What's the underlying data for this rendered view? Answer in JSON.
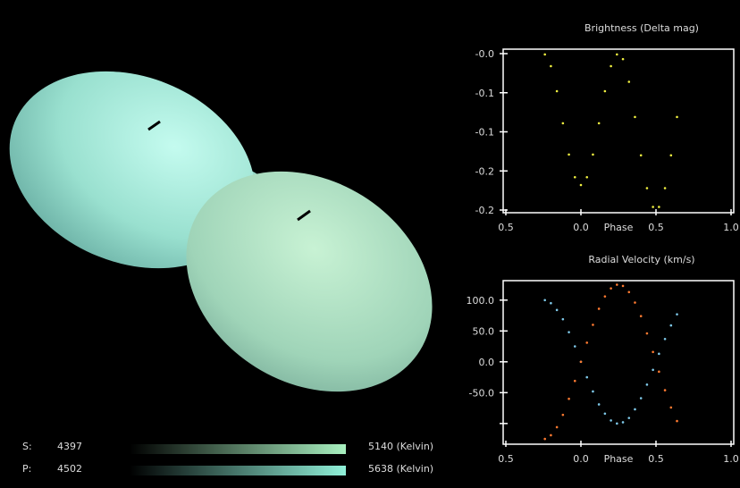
{
  "colors": {
    "background": "#000000",
    "secondary_star": "#a6ecd8",
    "primary_star": "#b4e4c4",
    "brightness_points": "#f0f040",
    "rv_primary": "#7ec8e8",
    "rv_secondary": "#ff7a30",
    "axes": "#ffffff"
  },
  "temperature": {
    "rows": [
      {
        "label": "S:",
        "min": "4397",
        "max": "5140 (Kelvin)",
        "color": "#a8f0c0"
      },
      {
        "label": "P:",
        "min": "4502",
        "max": "5638 (Kelvin)",
        "color": "#90f0d8"
      }
    ]
  },
  "chart_data": [
    {
      "type": "scatter",
      "title": "Brightness (Delta mag)",
      "xlabel": "Phase",
      "x_ticks": [
        {
          "v": -0.5,
          "label": "0.5"
        },
        {
          "v": 0.0,
          "label": "0.0"
        },
        {
          "v": 0.5,
          "label": "0.5"
        },
        {
          "v": 1.0,
          "label": "1.0"
        }
      ],
      "y_ticks": [
        {
          "v": 0.0,
          "label": "-0.0"
        },
        {
          "v": -0.05,
          "label": "-0.1"
        },
        {
          "v": -0.1,
          "label": "-0.1"
        },
        {
          "v": -0.15,
          "label": "-0.2"
        },
        {
          "v": -0.2,
          "label": "-0.2"
        }
      ],
      "xlim": [
        -0.5,
        1.0
      ],
      "ylim": [
        -0.2,
        0.0
      ],
      "grid": false,
      "series": [
        {
          "color": "#f0f040",
          "x": [
            -0.24,
            -0.2,
            -0.16,
            -0.12,
            -0.08,
            -0.04,
            0.0,
            0.04,
            0.08,
            0.12,
            0.16,
            0.2,
            0.24,
            0.28,
            0.32,
            0.36,
            0.4,
            0.44,
            0.48,
            0.52,
            0.56,
            0.6,
            0.64
          ],
          "y": [
            -0.001,
            -0.016,
            -0.048,
            -0.089,
            -0.129,
            -0.158,
            -0.168,
            -0.158,
            -0.129,
            -0.089,
            -0.048,
            -0.016,
            -0.001,
            -0.007,
            -0.036,
            -0.081,
            -0.13,
            -0.172,
            -0.196,
            -0.196,
            -0.172,
            -0.13,
            -0.081
          ]
        }
      ]
    },
    {
      "type": "scatter",
      "title": "Radial Velocity (km/s)",
      "xlabel": "Phase",
      "x_ticks": [
        {
          "v": -0.5,
          "label": "0.5"
        },
        {
          "v": 0.0,
          "label": "0.0"
        },
        {
          "v": 0.5,
          "label": "0.5"
        },
        {
          "v": 1.0,
          "label": "1.0"
        }
      ],
      "y_ticks": [
        {
          "v": 100,
          "label": "100.0"
        },
        {
          "v": 50,
          "label": "50.0"
        },
        {
          "v": 0,
          "label": "0.0"
        },
        {
          "v": -50,
          "label": "-50.0"
        },
        {
          "v": -100,
          "label": ""
        }
      ],
      "xlim": [
        -0.5,
        1.0
      ],
      "ylim": [
        -135,
        133
      ],
      "grid": false,
      "series": [
        {
          "color": "#7ec8e8",
          "x": [
            -0.24,
            -0.2,
            -0.16,
            -0.12,
            -0.08,
            -0.04,
            0.0,
            0.04,
            0.08,
            0.12,
            0.16,
            0.2,
            0.24,
            0.28,
            0.32,
            0.36,
            0.4,
            0.44,
            0.48,
            0.52,
            0.56,
            0.6,
            0.64
          ],
          "y": [
            100,
            95,
            84,
            69,
            48,
            25,
            0,
            -25,
            -48,
            -69,
            -84,
            -95,
            -100,
            -98,
            -91,
            -77,
            -59,
            -37,
            -13,
            13,
            37,
            59,
            77
          ]
        },
        {
          "color": "#ff7a30",
          "x": [
            -0.24,
            -0.2,
            -0.16,
            -0.12,
            -0.08,
            -0.04,
            0.0,
            0.04,
            0.08,
            0.12,
            0.16,
            0.2,
            0.24,
            0.28,
            0.32,
            0.36,
            0.4,
            0.44,
            0.48,
            0.52,
            0.56,
            0.6,
            0.64
          ],
          "y": [
            -125,
            -119,
            -106,
            -86,
            -60,
            -31,
            0,
            31,
            60,
            86,
            106,
            119,
            125,
            123,
            113,
            96,
            74,
            46,
            16,
            -16,
            -46,
            -74,
            -96
          ]
        }
      ]
    }
  ]
}
